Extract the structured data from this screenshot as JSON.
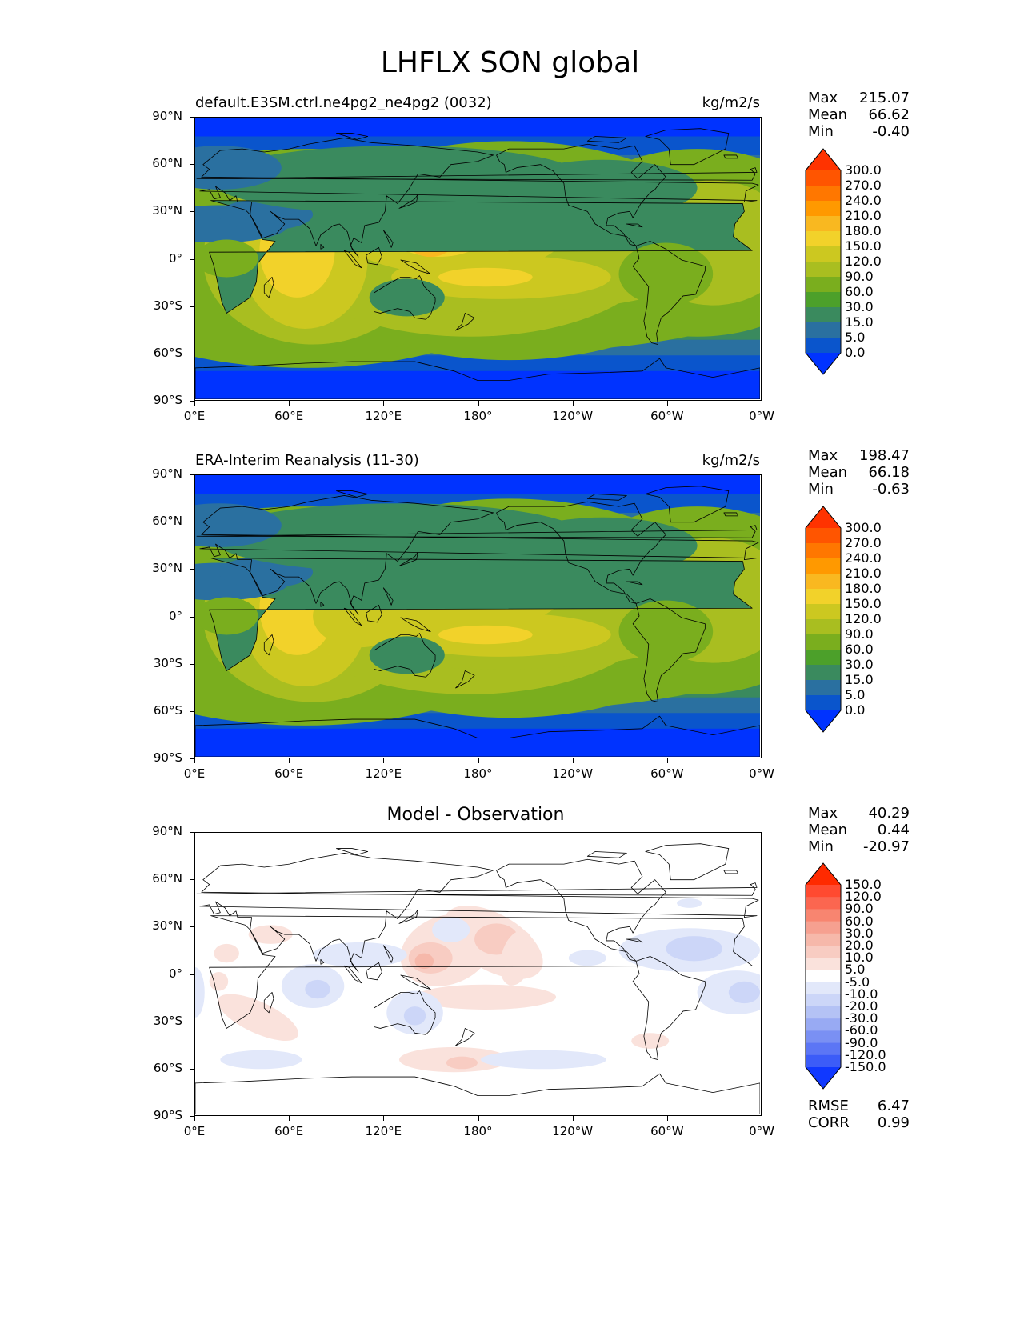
{
  "figure": {
    "title": "LHFLX SON global"
  },
  "lat_ticks": [
    "90°N",
    "60°N",
    "30°N",
    "0°",
    "30°S",
    "60°S",
    "90°S"
  ],
  "lon_ticks": [
    "0°E",
    "60°E",
    "120°E",
    "180°",
    "120°W",
    "60°W",
    "0°W"
  ],
  "panels": [
    {
      "title_left": "default.E3SM.ctrl.ne4pg2_ne4pg2 (0032)",
      "title_center": "",
      "units": "kg/m2/s",
      "stats": [
        {
          "label": "Max",
          "value": "215.07"
        },
        {
          "label": "Mean",
          "value": "66.62"
        },
        {
          "label": "Min",
          "value": "-0.40"
        }
      ],
      "colorbar": {
        "labels": [
          "300.0",
          "270.0",
          "240.0",
          "210.0",
          "180.0",
          "150.0",
          "120.0",
          "90.0",
          "60.0",
          "30.0",
          "15.0",
          "5.0",
          "0.0"
        ],
        "colors": [
          "#ff3300",
          "#ff5500",
          "#ff7700",
          "#ff9900",
          "#f9b820",
          "#f2d22a",
          "#ccc820",
          "#a9be20",
          "#7aae1e",
          "#4ca02a",
          "#3a8a5e",
          "#2a70a0",
          "#0a55cc",
          "#0033ff"
        ]
      },
      "field": "mean"
    },
    {
      "title_left": "ERA-Interim Reanalysis (11-30)",
      "title_center": "",
      "units": "kg/m2/s",
      "stats": [
        {
          "label": "Max",
          "value": "198.47"
        },
        {
          "label": "Mean",
          "value": "66.18"
        },
        {
          "label": "Min",
          "value": "-0.63"
        }
      ],
      "colorbar": {
        "labels": [
          "300.0",
          "270.0",
          "240.0",
          "210.0",
          "180.0",
          "150.0",
          "120.0",
          "90.0",
          "60.0",
          "30.0",
          "15.0",
          "5.0",
          "0.0"
        ],
        "colors": [
          "#ff3300",
          "#ff5500",
          "#ff7700",
          "#ff9900",
          "#f9b820",
          "#f2d22a",
          "#ccc820",
          "#a9be20",
          "#7aae1e",
          "#4ca02a",
          "#3a8a5e",
          "#2a70a0",
          "#0a55cc",
          "#0033ff"
        ]
      },
      "field": "mean"
    },
    {
      "title_left": "",
      "title_center": "Model - Observation",
      "units": "",
      "stats": [
        {
          "label": "Max",
          "value": "40.29"
        },
        {
          "label": "Mean",
          "value": "0.44"
        },
        {
          "label": "Min",
          "value": "-20.97"
        }
      ],
      "extra_stats": [
        {
          "label": "RMSE",
          "value": "6.47"
        },
        {
          "label": "CORR",
          "value": "0.99"
        }
      ],
      "colorbar": {
        "labels": [
          "150.0",
          "120.0",
          "90.0",
          "60.0",
          "30.0",
          "20.0",
          "10.0",
          "5.0",
          "-5.0",
          "-10.0",
          "-20.0",
          "-30.0",
          "-60.0",
          "-90.0",
          "-120.0",
          "-150.0"
        ],
        "colors": [
          "#ff2a00",
          "#ff4a30",
          "#fb6650",
          "#f88570",
          "#f6a090",
          "#f6b8aa",
          "#f8ccc2",
          "#fae2dc",
          "#ffffff",
          "#e2e8fa",
          "#ccd6f8",
          "#b4c2f5",
          "#98aaf3",
          "#7a90f3",
          "#5c76f5",
          "#3c5cf8",
          "#1038ff"
        ]
      },
      "field": "diff"
    }
  ]
}
